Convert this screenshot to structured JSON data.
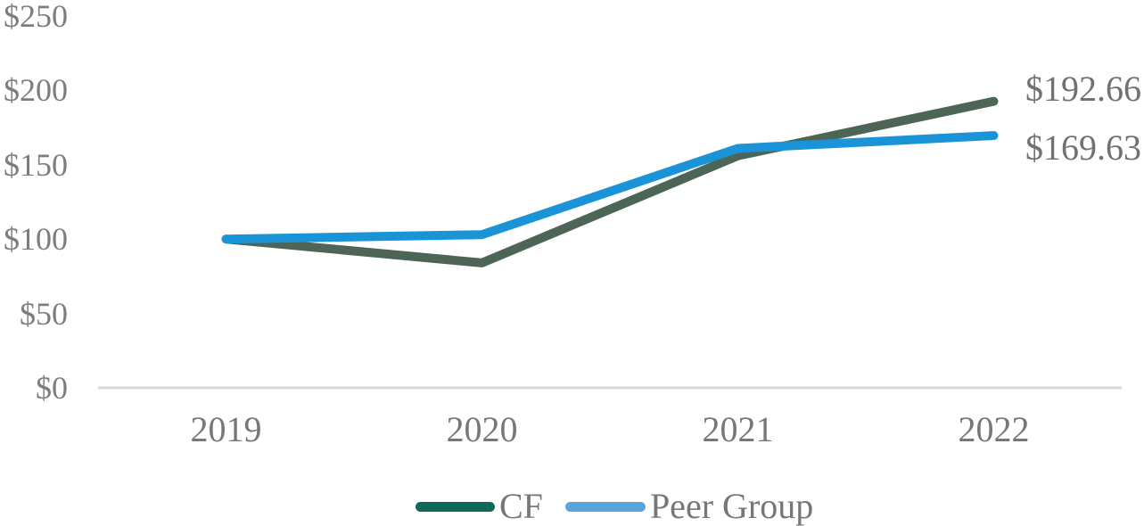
{
  "chart_data": {
    "type": "line",
    "title": "",
    "categories": [
      "2019",
      "2020",
      "2021",
      "2022"
    ],
    "y_ticks": [
      {
        "label": "$250",
        "value": 250
      },
      {
        "label": "$200",
        "value": 200
      },
      {
        "label": "$150",
        "value": 150
      },
      {
        "label": "$100",
        "value": 100
      },
      {
        "label": "$50",
        "value": 50
      },
      {
        "label": "$0",
        "value": 0
      }
    ],
    "ylim": [
      0,
      250
    ],
    "grid": false,
    "legend_position": "bottom",
    "series": [
      {
        "name": "CF",
        "values": [
          100,
          84,
          156,
          192.66
        ],
        "end_label": "$192.66",
        "line_color": "#4d6557",
        "legend_color": "#0e6957"
      },
      {
        "name": "Peer Group",
        "values": [
          100,
          103,
          161,
          169.63
        ],
        "end_label": "$169.63",
        "line_color": "#1b93d7",
        "legend_color": "#5ba4db"
      }
    ],
    "axis_color": "#d9d9d9",
    "label_color": "#75777a"
  }
}
